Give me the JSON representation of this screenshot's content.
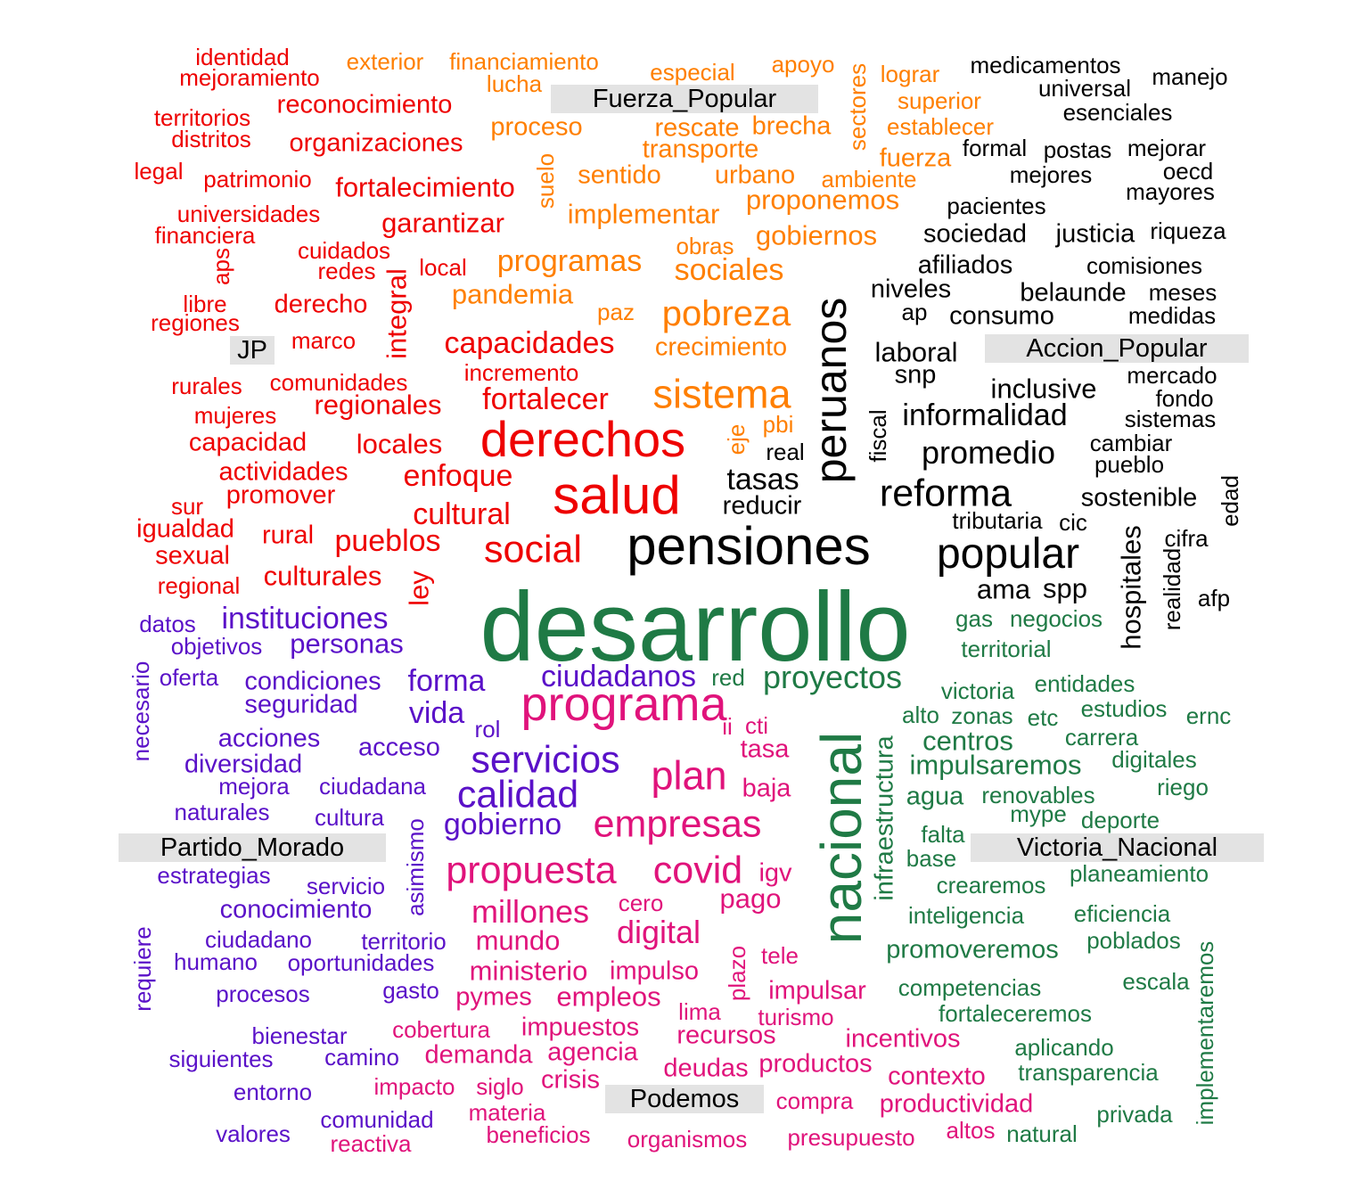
{
  "colors": {
    "JP": "#ee0000",
    "Fuerza_Popular": "#ff7f00",
    "Accion_Popular": "#000000",
    "Victoria_Nacional": "#1f7a45",
    "Partido_Morado": "#5a11c8",
    "Podemos": "#e0137b",
    "label_bg": "#e3e3e3"
  },
  "labels": {
    "jp": "JP",
    "fuerza_popular": "Fuerza_Popular",
    "accion_popular": "Accion_Popular",
    "partido_morado": "Partido_Morado",
    "victoria_nacional": "Victoria_Nacional",
    "podemos": "Podemos"
  },
  "groups": {
    "JP": [
      "identidad",
      "mejoramiento",
      "territorios",
      "distritos",
      "reconocimiento",
      "organizaciones",
      "legal",
      "patrimonio",
      "fortalecimiento",
      "universidades",
      "financiera",
      "garantizar",
      "cuidados",
      "aps",
      "redes",
      "local",
      "libre",
      "regiones",
      "derecho",
      "integral",
      "marco",
      "capacidades",
      "incremento",
      "rurales",
      "comunidades",
      "mujeres",
      "regionales",
      "fortalecer",
      "capacidad",
      "locales",
      "derechos",
      "actividades",
      "enfoque",
      "salud",
      "sur",
      "promover",
      "igualdad",
      "cultural",
      "rural",
      "pueblos",
      "sexual",
      "social",
      "regional",
      "culturales",
      "ley"
    ],
    "Fuerza_Popular": [
      "exterior",
      "financiamiento",
      "lucha",
      "especial",
      "apoyo",
      "sectores",
      "lograr",
      "superior",
      "proceso",
      "rescate",
      "brecha",
      "establecer",
      "transporte",
      "fuerza",
      "suelo",
      "sentido",
      "urbano",
      "ambiente",
      "implementar",
      "proponemos",
      "obras",
      "gobiernos",
      "programas",
      "sociales",
      "pandemia",
      "paz",
      "pobreza",
      "crecimiento",
      "sistema",
      "eje",
      "pbi"
    ],
    "Accion_Popular": [
      "medicamentos",
      "universal",
      "manejo",
      "esenciales",
      "formal",
      "postas",
      "mejorar",
      "oecd",
      "mejores",
      "mayores",
      "pacientes",
      "sociedad",
      "justicia",
      "riqueza",
      "afiliados",
      "comisiones",
      "niveles",
      "belaunde",
      "meses",
      "ap",
      "consumo",
      "medidas",
      "peruanos",
      "laboral",
      "snp",
      "mercado",
      "inclusive",
      "fondo",
      "fiscal",
      "informalidad",
      "sistemas",
      "real",
      "cambiar",
      "promedio",
      "pueblo",
      "tasas",
      "reforma",
      "reducir",
      "sostenible",
      "edad",
      "tributaria",
      "cic",
      "pensiones",
      "hospitales",
      "cifra",
      "popular",
      "realidad",
      "ama",
      "spp",
      "afp"
    ],
    "Partido_Morado": [
      "datos",
      "instituciones",
      "objetivos",
      "personas",
      "necesario",
      "oferta",
      "condiciones",
      "forma",
      "seguridad",
      "vida",
      "acciones",
      "servicios",
      "acceso",
      "diversidad",
      "mejora",
      "ciudadana",
      "calidad",
      "naturales",
      "cultura",
      "gobierno",
      "asimismo",
      "estrategias",
      "servicio",
      "conocimiento",
      "ciudadano",
      "territorio",
      "requiere",
      "humano",
      "oportunidades",
      "procesos",
      "gasto",
      "bienestar",
      "siguientes",
      "camino",
      "entorno",
      "comunidad",
      "valores",
      "ciudadanos",
      "rol"
    ],
    "Podemos": [
      "programa",
      "ii",
      "cti",
      "tasa",
      "plan",
      "baja",
      "empresas",
      "propuesta",
      "covid",
      "igv",
      "millones",
      "cero",
      "pago",
      "digital",
      "mundo",
      "ministerio",
      "plazo",
      "tele",
      "impulso",
      "impulsar",
      "pymes",
      "empleos",
      "lima",
      "turismo",
      "cobertura",
      "impuestos",
      "recursos",
      "incentivos",
      "demanda",
      "agencia",
      "deudas",
      "productos",
      "impacto",
      "siglo",
      "crisis",
      "contexto",
      "compra",
      "materia",
      "reactiva",
      "beneficios",
      "organismos",
      "presupuesto",
      "altos",
      "productividad"
    ],
    "Victoria_Nacional": [
      "desarrollo",
      "gas",
      "negocios",
      "territorial",
      "red",
      "proyectos",
      "nacional",
      "victoria",
      "entidades",
      "alto",
      "zonas",
      "etc",
      "estudios",
      "ernc",
      "centros",
      "carrera",
      "infraestructura",
      "impulsaremos",
      "digitales",
      "agua",
      "renovables",
      "riego",
      "mype",
      "deporte",
      "falta",
      "base",
      "crearemos",
      "planeamiento",
      "inteligencia",
      "eficiencia",
      "promoveremos",
      "poblados",
      "competencias",
      "escala",
      "fortaleceremos",
      "implementaremos",
      "aplicando",
      "transparencia",
      "privada",
      "natural"
    ]
  }
}
